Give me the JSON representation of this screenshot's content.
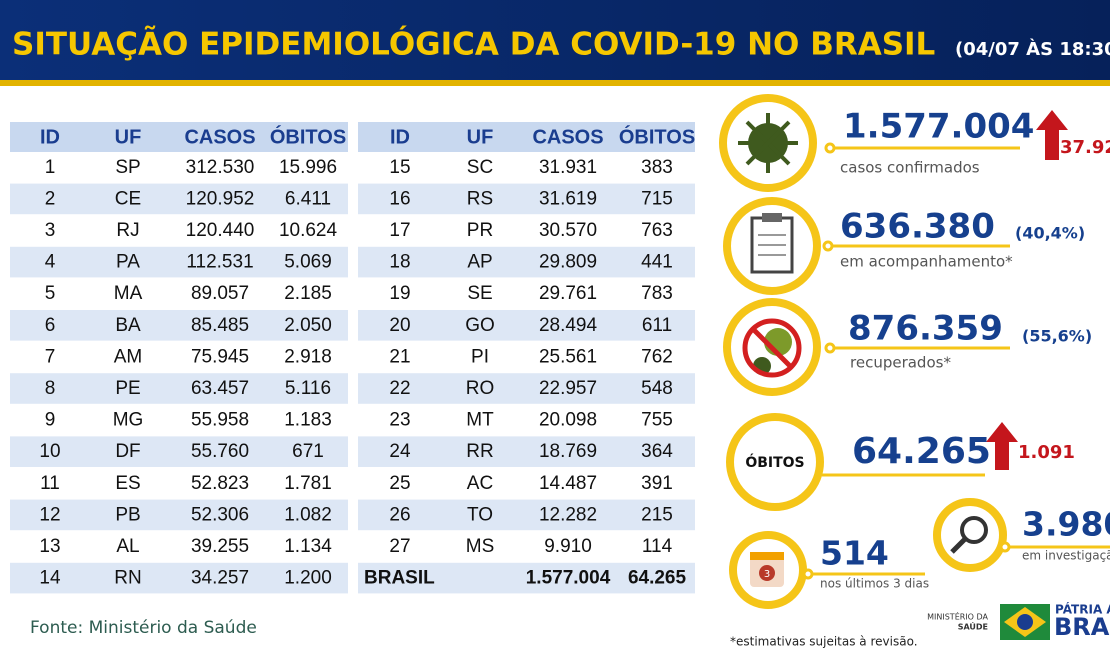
{
  "header": {
    "title": "SITUAÇÃO EPIDEMIOLÓGICA DA COVID-19 NO BRASIL",
    "date": "(04/07 ÀS 18:30"
  },
  "tables": [
    {
      "columns": [
        "ID",
        "UF",
        "CASOS",
        "ÓBITOS"
      ],
      "rows": [
        [
          "1",
          "SP",
          "312.530",
          "15.996"
        ],
        [
          "2",
          "CE",
          "120.952",
          "6.411"
        ],
        [
          "3",
          "RJ",
          "120.440",
          "10.624"
        ],
        [
          "4",
          "PA",
          "112.531",
          "5.069"
        ],
        [
          "5",
          "MA",
          "89.057",
          "2.185"
        ],
        [
          "6",
          "BA",
          "85.485",
          "2.050"
        ],
        [
          "7",
          "AM",
          "75.945",
          "2.918"
        ],
        [
          "8",
          "PE",
          "63.457",
          "5.116"
        ],
        [
          "9",
          "MG",
          "55.958",
          "1.183"
        ],
        [
          "10",
          "DF",
          "55.760",
          "671"
        ],
        [
          "11",
          "ES",
          "52.823",
          "1.781"
        ],
        [
          "12",
          "PB",
          "52.306",
          "1.082"
        ],
        [
          "13",
          "AL",
          "39.255",
          "1.134"
        ],
        [
          "14",
          "RN",
          "34.257",
          "1.200"
        ]
      ]
    },
    {
      "columns": [
        "ID",
        "UF",
        "CASOS",
        "ÓBITOS"
      ],
      "rows": [
        [
          "15",
          "SC",
          "31.931",
          "383"
        ],
        [
          "16",
          "RS",
          "31.619",
          "715"
        ],
        [
          "17",
          "PR",
          "30.570",
          "763"
        ],
        [
          "18",
          "AP",
          "29.809",
          "441"
        ],
        [
          "19",
          "SE",
          "29.761",
          "783"
        ],
        [
          "20",
          "GO",
          "28.494",
          "611"
        ],
        [
          "21",
          "PI",
          "25.561",
          "762"
        ],
        [
          "22",
          "RO",
          "22.957",
          "548"
        ],
        [
          "23",
          "MT",
          "20.098",
          "755"
        ],
        [
          "24",
          "RR",
          "18.769",
          "364"
        ],
        [
          "25",
          "AC",
          "14.487",
          "391"
        ],
        [
          "26",
          "TO",
          "12.282",
          "215"
        ],
        [
          "27",
          "MS",
          "9.910",
          "114"
        ]
      ],
      "total": [
        "BRASIL",
        "1.577.004",
        "64.265"
      ]
    }
  ],
  "stats": {
    "confirmed": {
      "value": "1.577.004",
      "label": "casos confirmados",
      "change": "37.92"
    },
    "monitoring": {
      "value": "636.380",
      "percent": "(40,4%)",
      "label": "em acompanhamento*"
    },
    "recovered": {
      "value": "876.359",
      "percent": "(55,6%)",
      "label": "recuperados*"
    },
    "deaths": {
      "badge": "ÓBITOS",
      "value": "64.265",
      "change": "1.091"
    },
    "investigation": {
      "value": "3.980",
      "label": "em investigaçã"
    },
    "recent": {
      "icon": "3",
      "value": "514",
      "label": "nos últimos 3 dias"
    }
  },
  "source": "Fonte: Ministério da Saúde",
  "footnote": "*estimativas sujeitas à revisão.",
  "logos": {
    "ministry_line1": "MINISTÉRIO DA",
    "ministry_line2": "SAÚDE",
    "brand_line1": "PÁTRIA AM",
    "brand_line2": "BRAS"
  }
}
